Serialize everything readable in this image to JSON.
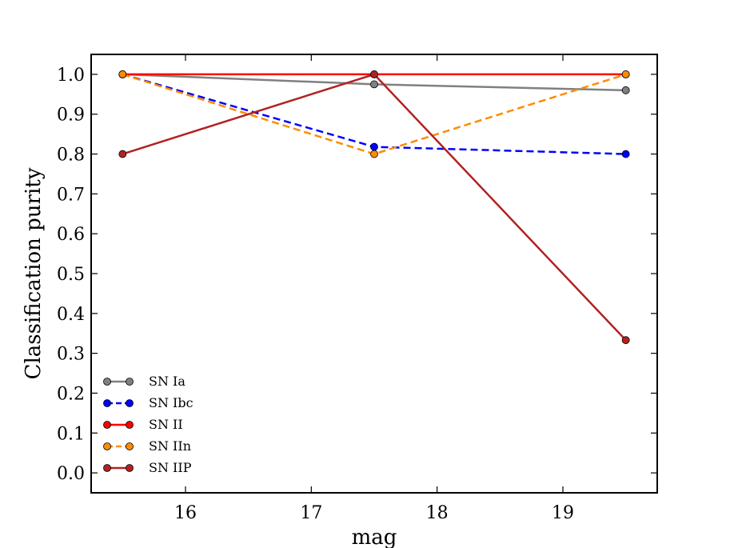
{
  "chart_data": {
    "type": "line",
    "title": "",
    "xlabel": "mag",
    "ylabel": "Classification purity",
    "xlim": [
      15.25,
      19.75
    ],
    "ylim": [
      -0.05,
      1.05
    ],
    "xticks": [
      16,
      17,
      18,
      19
    ],
    "xtick_labels": [
      "16",
      "17",
      "18",
      "19"
    ],
    "yticks": [
      0.0,
      0.1,
      0.2,
      0.3,
      0.4,
      0.5,
      0.6,
      0.7,
      0.8,
      0.9,
      1.0
    ],
    "ytick_labels": [
      "0.0",
      "0.1",
      "0.2",
      "0.3",
      "0.4",
      "0.5",
      "0.6",
      "0.7",
      "0.8",
      "0.9",
      "1.0"
    ],
    "x": [
      15.5,
      17.5,
      19.5
    ],
    "legend_position": "lower-left",
    "series": [
      {
        "name": "SN Ia",
        "label": "SN Ia",
        "key": "sn-ia",
        "values": [
          1.0,
          0.975,
          0.96
        ],
        "color": "#808080",
        "dash": "solid"
      },
      {
        "name": "SN Ibc",
        "label": "SN Ibc",
        "key": "sn-ibc",
        "values": [
          1.0,
          0.818,
          0.8
        ],
        "color": "#0000ff",
        "dash": "dashed"
      },
      {
        "name": "SN II",
        "label": "SN II",
        "key": "sn-ii",
        "values": [
          1.0,
          1.0,
          1.0
        ],
        "color": "#ff0000",
        "dash": "solid"
      },
      {
        "name": "SN IIn",
        "label": "SN IIn",
        "key": "sn-iin",
        "values": [
          1.0,
          0.8,
          1.0
        ],
        "color": "#ff8c00",
        "dash": "dashed"
      },
      {
        "name": "SN IIP",
        "label": "SN IIP",
        "key": "sn-iip",
        "values": [
          0.8,
          1.0,
          0.333
        ],
        "color": "#b22222",
        "dash": "solid"
      }
    ]
  }
}
